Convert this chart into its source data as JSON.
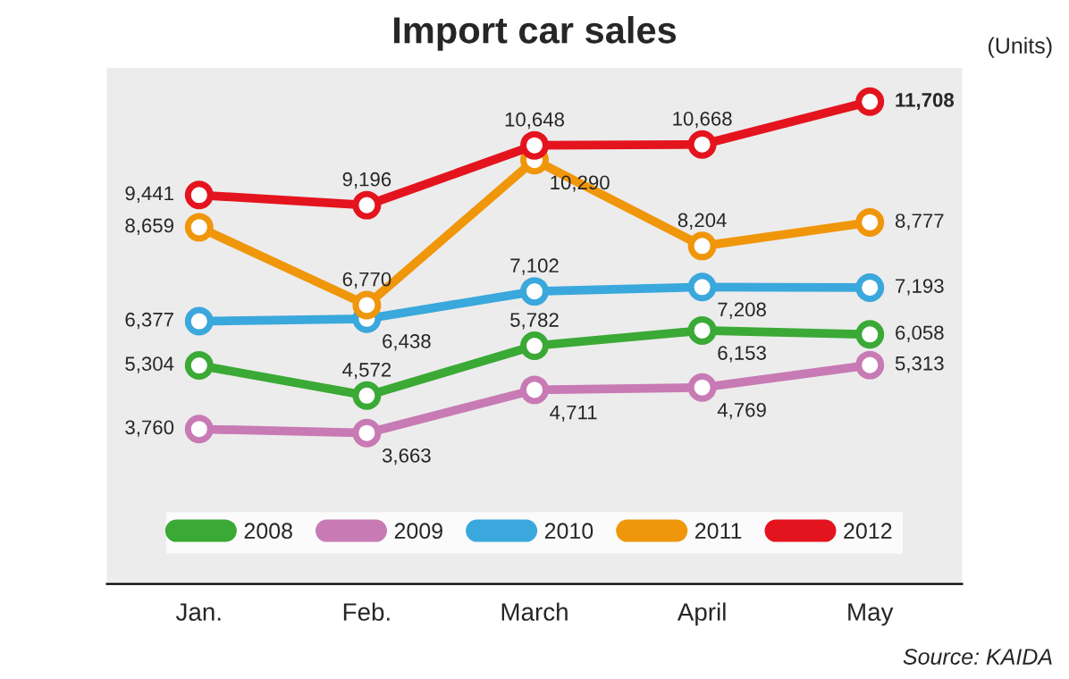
{
  "chart_data": {
    "type": "line",
    "title": "Import car sales",
    "categories": [
      "Jan.",
      "Feb.",
      "March",
      "April",
      "May"
    ],
    "series": [
      {
        "name": "2008",
        "color": "#3aa935",
        "values": [
          5304,
          4572,
          5782,
          6153,
          6058
        ],
        "value_labels": [
          "5,304",
          "4,572",
          "5,782",
          "6,153",
          "6,058"
        ]
      },
      {
        "name": "2009",
        "color": "#c87ab4",
        "values": [
          3760,
          3663,
          4711,
          4769,
          5313
        ],
        "value_labels": [
          "3,760",
          "3,663",
          "4,711",
          "4,769",
          "5,313"
        ]
      },
      {
        "name": "2010",
        "color": "#3aa8dc",
        "values": [
          6377,
          6438,
          7102,
          7208,
          7193
        ],
        "value_labels": [
          "6,377",
          "6,438",
          "7,102",
          "7,208",
          "7,193"
        ]
      },
      {
        "name": "2011",
        "color": "#f0960a",
        "values": [
          8659,
          6770,
          10290,
          8204,
          8777
        ],
        "value_labels": [
          "8,659",
          "6,770",
          "10,290",
          "8,204",
          "8,777"
        ]
      },
      {
        "name": "2012",
        "color": "#e4141e",
        "values": [
          9441,
          9196,
          10648,
          10668,
          11708
        ],
        "value_labels": [
          "9,441",
          "9,196",
          "10,648",
          "10,668",
          "11,708"
        ]
      }
    ],
    "marker": "circle",
    "line_style": "solid",
    "legend": "bottom",
    "grid": false,
    "annotations": [
      "(Units)",
      "Source: KAIDA"
    ]
  }
}
